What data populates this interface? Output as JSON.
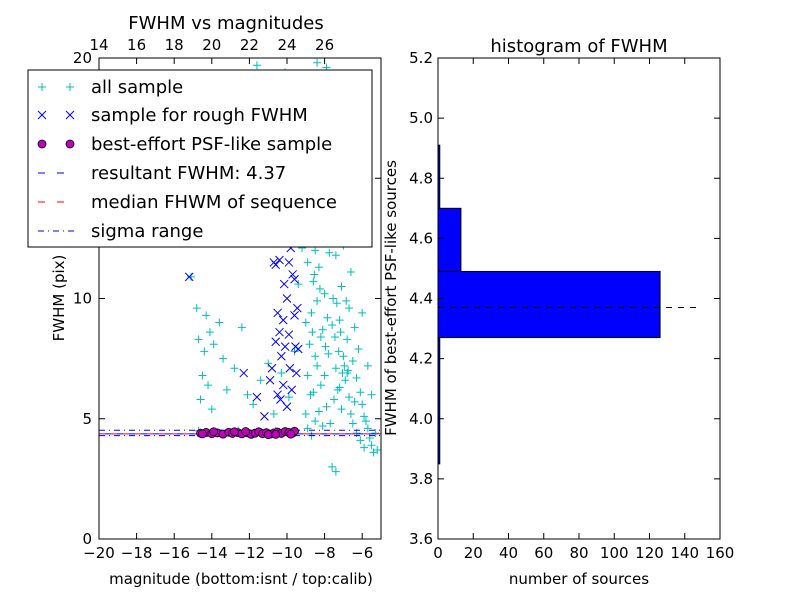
{
  "figure": {
    "background": "#ffffff",
    "colors": {
      "all_sample": "#00bfbf",
      "rough_sample": "#0000ff",
      "psf_like_face": "#bf00bf",
      "resultant_line": "#0000ff",
      "median_line": "#ff0000",
      "sigma_line": "#0000ff",
      "histogram_bar": "#0000ff"
    }
  },
  "chart_data": [
    {
      "type": "scatter",
      "title": "FWHM vs magnitudes",
      "xlabel": "magnitude (bottom:isnt / top:calib)",
      "ylabel": "FWHM (pix)",
      "xlim": [
        -20,
        -5
      ],
      "ylim": [
        0,
        20
      ],
      "x_ticks": [
        -20,
        -18,
        -16,
        -14,
        -12,
        -10,
        -8,
        -6
      ],
      "x_tick_labels": [
        "−20",
        "−18",
        "−16",
        "−14",
        "−12",
        "−10",
        "−8",
        "−6"
      ],
      "y_ticks": [
        0,
        5,
        10,
        15,
        20
      ],
      "y_tick_labels": [
        "0",
        "5",
        "10",
        "15",
        "20"
      ],
      "top_axis": {
        "ticks": [
          14,
          16,
          18,
          20,
          22,
          24,
          26
        ],
        "tick_labels": [
          "14",
          "16",
          "18",
          "20",
          "22",
          "24",
          "26"
        ],
        "offset": 34
      },
      "legend": {
        "location": "upper-left",
        "entries": [
          {
            "label": "all sample",
            "marker": "plus"
          },
          {
            "label": "sample for rough FWHM",
            "marker": "x"
          },
          {
            "label": "best-effort PSF-like sample",
            "marker": "circle"
          },
          {
            "label": "resultant FWHM: 4.37",
            "marker": "dashed-line"
          },
          {
            "label": "median FHWM of sequence",
            "marker": "dashed-line"
          },
          {
            "label": "sigma range",
            "marker": "dashdot-line"
          }
        ]
      },
      "series": [
        {
          "name": "all sample",
          "marker": "plus",
          "points": [
            [
              -15.1,
              10.9
            ],
            [
              -14.8,
              9.6
            ],
            [
              -14.3,
              9.3
            ],
            [
              -14.7,
              8.3
            ],
            [
              -14.4,
              7.8
            ],
            [
              -14.1,
              8.6
            ],
            [
              -13.9,
              8.1
            ],
            [
              -14.5,
              6.8
            ],
            [
              -14.2,
              6.4
            ],
            [
              -13.6,
              9.0
            ],
            [
              -13.4,
              7.5
            ],
            [
              -14.6,
              5.8
            ],
            [
              -14.0,
              5.4
            ],
            [
              -13.2,
              6.2
            ],
            [
              -12.8,
              7.1
            ],
            [
              -12.4,
              8.8
            ],
            [
              -12.1,
              6.0
            ],
            [
              -11.8,
              5.6
            ],
            [
              -11.4,
              6.6
            ],
            [
              -11.0,
              7.3
            ],
            [
              -10.7,
              5.2
            ],
            [
              -10.3,
              6.9
            ],
            [
              -9.9,
              5.9
            ],
            [
              -14.9,
              12.5
            ],
            [
              -14.3,
              18.6
            ],
            [
              -14.7,
              4.5
            ],
            [
              -13.5,
              4.4
            ],
            [
              -12.6,
              4.5
            ],
            [
              -11.6,
              4.4
            ],
            [
              -10.6,
              4.5
            ],
            [
              -9.6,
              7.8
            ],
            [
              -9.4,
              10.6
            ],
            [
              -9.2,
              12.1
            ],
            [
              -9.8,
              15.3
            ],
            [
              -10.1,
              19.4
            ],
            [
              -11.6,
              19.7
            ],
            [
              -9.5,
              16.2
            ],
            [
              -9.1,
              13.4
            ],
            [
              -9.0,
              5.2
            ],
            [
              -8.9,
              6.8
            ],
            [
              -8.8,
              8.1
            ],
            [
              -8.7,
              9.4
            ],
            [
              -8.6,
              10.7
            ],
            [
              -8.5,
              12.0
            ],
            [
              -8.4,
              13.2
            ],
            [
              -8.3,
              14.6
            ],
            [
              -8.2,
              15.8
            ],
            [
              -8.1,
              17.1
            ],
            [
              -8.0,
              18.3
            ],
            [
              -7.9,
              19.6
            ],
            [
              -8.9,
              11.5
            ],
            [
              -8.8,
              13.8
            ],
            [
              -8.7,
              16.2
            ],
            [
              -8.6,
              18.7
            ],
            [
              -8.5,
              7.6
            ],
            [
              -8.4,
              9.9
            ],
            [
              -8.3,
              11.3
            ],
            [
              -8.2,
              6.4
            ],
            [
              -8.1,
              8.7
            ],
            [
              -8.0,
              10.2
            ],
            [
              -7.9,
              12.6
            ],
            [
              -7.8,
              14.0
            ],
            [
              -7.7,
              15.5
            ],
            [
              -7.6,
              17.3
            ],
            [
              -7.5,
              19.1
            ],
            [
              -7.4,
              11.8
            ],
            [
              -7.3,
              13.4
            ],
            [
              -7.2,
              9.1
            ],
            [
              -7.1,
              10.5
            ],
            [
              -7.0,
              12.2
            ],
            [
              -6.9,
              14.8
            ],
            [
              -6.8,
              8.3
            ],
            [
              -6.7,
              9.6
            ],
            [
              -6.6,
              11.1
            ],
            [
              -6.5,
              7.4
            ],
            [
              -6.4,
              8.8
            ],
            [
              -6.3,
              6.7
            ],
            [
              -6.2,
              7.9
            ],
            [
              -6.1,
              6.1
            ],
            [
              -6.0,
              5.6
            ],
            [
              -5.9,
              5.1
            ],
            [
              -5.8,
              4.9
            ],
            [
              -5.7,
              4.6
            ],
            [
              -5.6,
              4.2
            ],
            [
              -5.5,
              3.9
            ],
            [
              -5.4,
              3.6
            ],
            [
              -8.9,
              4.6
            ],
            [
              -8.7,
              4.3
            ],
            [
              -8.5,
              4.9
            ],
            [
              -8.3,
              5.3
            ],
            [
              -8.1,
              4.7
            ],
            [
              -7.9,
              5.5
            ],
            [
              -7.7,
              4.8
            ],
            [
              -7.5,
              5.8
            ],
            [
              -7.3,
              6.2
            ],
            [
              -7.1,
              5.4
            ],
            [
              -6.9,
              6.6
            ],
            [
              -6.7,
              5.9
            ],
            [
              -6.5,
              4.8
            ],
            [
              -6.3,
              4.4
            ],
            [
              -6.1,
              4.1
            ],
            [
              -5.9,
              3.8
            ],
            [
              -7.6,
              3.0
            ],
            [
              -7.4,
              2.8
            ],
            [
              -8.6,
              6.1
            ],
            [
              -8.4,
              7.2
            ],
            [
              -8.2,
              8.4
            ],
            [
              -8.0,
              6.8
            ],
            [
              -7.8,
              7.7
            ],
            [
              -7.6,
              8.9
            ],
            [
              -7.4,
              7.1
            ],
            [
              -7.2,
              6.3
            ],
            [
              -7.0,
              7.6
            ],
            [
              -6.8,
              6.9
            ],
            [
              -6.6,
              5.2
            ],
            [
              -6.4,
              5.7
            ],
            [
              -8.8,
              17.4
            ],
            [
              -8.4,
              19.8
            ],
            [
              -8.0,
              16.1
            ],
            [
              -7.6,
              18.2
            ],
            [
              -7.2,
              16.6
            ],
            [
              -6.8,
              15.9
            ],
            [
              -6.4,
              12.7
            ],
            [
              -6.0,
              9.4
            ],
            [
              -5.7,
              7.2
            ],
            [
              -5.5,
              6.0
            ],
            [
              -5.3,
              4.4
            ],
            [
              -5.2,
              3.7
            ],
            [
              -9.0,
              9.0
            ],
            [
              -8.95,
              14.4
            ],
            [
              -8.85,
              19.0
            ],
            [
              -8.75,
              6.0
            ],
            [
              -8.65,
              8.6
            ],
            [
              -8.55,
              11.0
            ],
            [
              -8.45,
              15.2
            ],
            [
              -8.35,
              17.8
            ],
            [
              -8.25,
              10.4
            ],
            [
              -8.15,
              12.8
            ],
            [
              -8.05,
              14.0
            ],
            [
              -7.95,
              8.0
            ],
            [
              -7.85,
              9.2
            ],
            [
              -7.75,
              11.9
            ],
            [
              -7.65,
              13.1
            ],
            [
              -7.55,
              10.0
            ],
            [
              -7.45,
              8.4
            ],
            [
              -7.35,
              9.8
            ],
            [
              -7.25,
              7.8
            ],
            [
              -7.15,
              8.6
            ],
            [
              -7.05,
              6.9
            ],
            [
              -6.95,
              7.2
            ],
            [
              -6.85,
              9.9
            ],
            [
              -6.75,
              7.0
            ]
          ]
        },
        {
          "name": "sample for rough FWHM",
          "marker": "x",
          "points": [
            [
              -15.2,
              10.9
            ],
            [
              -12.3,
              6.9
            ],
            [
              -11.6,
              5.9
            ],
            [
              -11.2,
              5.1
            ],
            [
              -10.9,
              6.6
            ],
            [
              -10.7,
              11.5
            ],
            [
              -10.6,
              11.4
            ],
            [
              -10.5,
              9.4
            ],
            [
              -10.4,
              8.6
            ],
            [
              -10.3,
              7.6
            ],
            [
              -10.2,
              9.1
            ],
            [
              -10.1,
              8.0
            ],
            [
              -10.0,
              10.0
            ],
            [
              -9.9,
              8.5
            ],
            [
              -9.8,
              12.1
            ],
            [
              -9.7,
              11.0
            ],
            [
              -9.6,
              9.3
            ],
            [
              -9.5,
              6.9
            ],
            [
              -9.4,
              7.9
            ],
            [
              -10.5,
              6.0
            ],
            [
              -10.0,
              5.5
            ],
            [
              -9.6,
              10.8
            ],
            [
              -9.5,
              13.2
            ],
            [
              -9.4,
              12.4
            ],
            [
              -10.8,
              7.1
            ],
            [
              -10.4,
              11.6
            ],
            [
              -9.9,
              11.5
            ],
            [
              -9.7,
              12.9
            ],
            [
              -10.6,
              8.2
            ],
            [
              -10.2,
              6.4
            ],
            [
              -9.45,
              9.6
            ],
            [
              -9.55,
              8.0
            ],
            [
              -10.15,
              10.6
            ],
            [
              -9.85,
              7.1
            ],
            [
              -10.35,
              5.8
            ],
            [
              -9.75,
              6.2
            ]
          ]
        },
        {
          "name": "best-effort PSF-like sample",
          "marker": "circle",
          "points": [
            [
              -14.6,
              4.4
            ],
            [
              -14.3,
              4.43
            ],
            [
              -14.0,
              4.38
            ],
            [
              -13.7,
              4.41
            ],
            [
              -13.4,
              4.36
            ],
            [
              -13.1,
              4.44
            ],
            [
              -12.9,
              4.39
            ],
            [
              -12.6,
              4.42
            ],
            [
              -12.4,
              4.37
            ],
            [
              -12.1,
              4.41
            ],
            [
              -11.9,
              4.35
            ],
            [
              -11.7,
              4.4
            ],
            [
              -11.5,
              4.46
            ],
            [
              -11.3,
              4.38
            ],
            [
              -11.1,
              4.42
            ],
            [
              -10.9,
              4.36
            ],
            [
              -10.7,
              4.41
            ],
            [
              -10.5,
              4.45
            ],
            [
              -10.3,
              4.39
            ],
            [
              -10.1,
              4.47
            ],
            [
              -9.9,
              4.43
            ],
            [
              -9.7,
              4.4
            ],
            [
              -9.6,
              4.48
            ],
            [
              -13.9,
              4.46
            ],
            [
              -12.2,
              4.47
            ],
            [
              -11.0,
              4.34
            ],
            [
              -10.6,
              4.35
            ],
            [
              -9.8,
              4.36
            ],
            [
              -14.5,
              4.37
            ],
            [
              -12.8,
              4.46
            ]
          ]
        }
      ],
      "reference_lines": {
        "resultant_fwhm": 4.37,
        "median_fwhm": 4.37,
        "sigma_range": [
          4.3,
          4.52
        ]
      }
    },
    {
      "type": "bar",
      "orientation": "horizontal",
      "title": "histogram of FWHM",
      "xlabel": "number of sources",
      "ylabel": "FWHM of best-effort PSF-like sources",
      "xlim": [
        0,
        160
      ],
      "ylim": [
        3.6,
        5.2
      ],
      "x_ticks": [
        0,
        20,
        40,
        60,
        80,
        100,
        120,
        140,
        160
      ],
      "x_tick_labels": [
        "0",
        "20",
        "40",
        "60",
        "80",
        "100",
        "120",
        "140",
        "160"
      ],
      "y_ticks": [
        3.6,
        3.8,
        4.0,
        4.2,
        4.4,
        4.6,
        4.8,
        5.0,
        5.2
      ],
      "y_tick_labels": [
        "3.6",
        "3.8",
        "4.0",
        "4.2",
        "4.4",
        "4.6",
        "4.8",
        "5.0",
        "5.2"
      ],
      "bins": [
        {
          "from": 3.85,
          "to": 4.27,
          "count": 1
        },
        {
          "from": 4.27,
          "to": 4.49,
          "count": 126
        },
        {
          "from": 4.49,
          "to": 4.7,
          "count": 13
        },
        {
          "from": 4.7,
          "to": 4.91,
          "count": 1
        }
      ],
      "reference_line": {
        "value": 4.37,
        "x_range": [
          0,
          147
        ]
      }
    }
  ]
}
